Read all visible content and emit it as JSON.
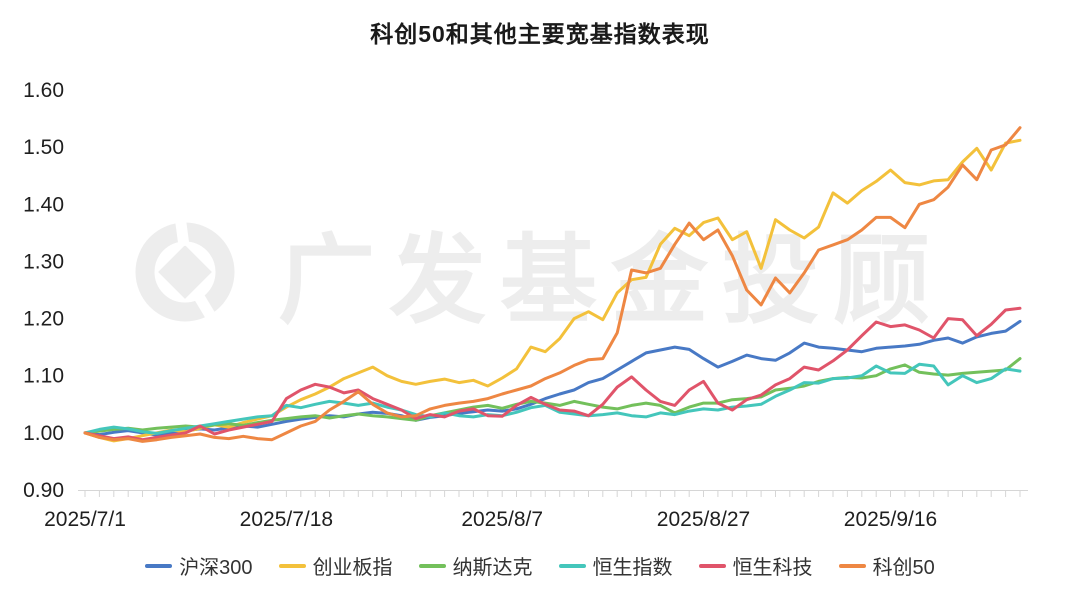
{
  "page": {
    "background": "#ffffff"
  },
  "watermark": {
    "text": "广发基金投顾",
    "logo": "gf-fund-ring-diamond-logo",
    "color": "#ededed"
  },
  "chart_data": {
    "type": "line",
    "title": "科创50和其他主要宽基指数表现",
    "grid": false,
    "legend_position": "bottom",
    "x_axis": {
      "n_points": 66,
      "minor_tick_per_point": true,
      "tick_labels": [
        {
          "label": "2025/7/1",
          "index": 0
        },
        {
          "label": "2025/7/18",
          "index": 14
        },
        {
          "label": "2025/8/7",
          "index": 29
        },
        {
          "label": "2025/8/27",
          "index": 43
        },
        {
          "label": "2025/9/16",
          "index": 56
        }
      ]
    },
    "y_axis": {
      "min": 0.9,
      "max": 1.6,
      "tick_labels": [
        "0.90",
        "1.00",
        "1.10",
        "1.20",
        "1.30",
        "1.40",
        "1.50",
        "1.60"
      ]
    },
    "series": [
      {
        "name": "沪深300",
        "color": "#4879C5",
        "values": [
          1.0,
          0.997,
          1.001,
          1.004,
          1.0,
          0.996,
          1.0,
          1.004,
          1.007,
          1.005,
          1.009,
          1.012,
          1.01,
          1.015,
          1.02,
          1.024,
          1.027,
          1.03,
          1.028,
          1.033,
          1.036,
          1.034,
          1.03,
          1.022,
          1.027,
          1.03,
          1.034,
          1.037,
          1.04,
          1.038,
          1.042,
          1.05,
          1.06,
          1.068,
          1.075,
          1.088,
          1.095,
          1.11,
          1.125,
          1.14,
          1.145,
          1.15,
          1.146,
          1.13,
          1.115,
          1.125,
          1.136,
          1.13,
          1.127,
          1.14,
          1.157,
          1.15,
          1.148,
          1.145,
          1.142,
          1.148,
          1.15,
          1.152,
          1.155,
          1.162,
          1.166,
          1.157,
          1.168,
          1.174,
          1.178,
          1.195
        ]
      },
      {
        "name": "创业板指",
        "color": "#F3C13B",
        "values": [
          1.0,
          0.992,
          0.986,
          0.99,
          0.995,
          1.0,
          1.005,
          1.002,
          1.008,
          1.014,
          1.01,
          1.018,
          1.024,
          1.03,
          1.045,
          1.058,
          1.068,
          1.08,
          1.095,
          1.105,
          1.115,
          1.1,
          1.09,
          1.085,
          1.09,
          1.094,
          1.088,
          1.092,
          1.082,
          1.096,
          1.112,
          1.15,
          1.142,
          1.165,
          1.2,
          1.212,
          1.198,
          1.245,
          1.268,
          1.272,
          1.33,
          1.358,
          1.345,
          1.368,
          1.376,
          1.338,
          1.352,
          1.288,
          1.373,
          1.355,
          1.341,
          1.36,
          1.42,
          1.402,
          1.424,
          1.44,
          1.46,
          1.438,
          1.434,
          1.441,
          1.443,
          1.474,
          1.498,
          1.46,
          1.507,
          1.512
        ]
      },
      {
        "name": "纳斯达克",
        "color": "#73C05B",
        "values": [
          1.0,
          1.003,
          1.006,
          1.008,
          1.005,
          1.008,
          1.01,
          1.012,
          1.01,
          1.014,
          1.016,
          1.013,
          1.018,
          1.022,
          1.025,
          1.028,
          1.03,
          1.026,
          1.03,
          1.033,
          1.03,
          1.028,
          1.025,
          1.022,
          1.03,
          1.035,
          1.04,
          1.045,
          1.048,
          1.043,
          1.05,
          1.055,
          1.052,
          1.048,
          1.055,
          1.05,
          1.045,
          1.042,
          1.048,
          1.052,
          1.048,
          1.035,
          1.045,
          1.052,
          1.052,
          1.058,
          1.06,
          1.063,
          1.075,
          1.078,
          1.082,
          1.09,
          1.095,
          1.097,
          1.096,
          1.1,
          1.112,
          1.119,
          1.106,
          1.103,
          1.101,
          1.104,
          1.106,
          1.108,
          1.11,
          1.13
        ]
      },
      {
        "name": "恒生指数",
        "color": "#44C6BB",
        "values": [
          1.0,
          1.006,
          1.01,
          1.007,
          1.002,
          0.999,
          1.004,
          1.008,
          1.012,
          1.016,
          1.02,
          1.024,
          1.028,
          1.03,
          1.048,
          1.044,
          1.05,
          1.055,
          1.052,
          1.048,
          1.052,
          1.045,
          1.04,
          1.032,
          1.028,
          1.035,
          1.03,
          1.028,
          1.032,
          1.03,
          1.036,
          1.044,
          1.048,
          1.036,
          1.033,
          1.03,
          1.032,
          1.035,
          1.03,
          1.028,
          1.035,
          1.032,
          1.038,
          1.042,
          1.04,
          1.045,
          1.047,
          1.05,
          1.064,
          1.075,
          1.088,
          1.087,
          1.095,
          1.096,
          1.1,
          1.117,
          1.105,
          1.104,
          1.12,
          1.117,
          1.084,
          1.1,
          1.088,
          1.095,
          1.112,
          1.108
        ]
      },
      {
        "name": "恒生科技",
        "color": "#E0546A",
        "values": [
          1.0,
          0.995,
          0.99,
          0.993,
          0.988,
          0.992,
          0.996,
          1.0,
          1.012,
          0.998,
          1.005,
          1.01,
          1.015,
          1.02,
          1.06,
          1.075,
          1.085,
          1.08,
          1.07,
          1.075,
          1.06,
          1.05,
          1.04,
          1.025,
          1.032,
          1.028,
          1.038,
          1.042,
          1.03,
          1.029,
          1.048,
          1.062,
          1.05,
          1.04,
          1.038,
          1.03,
          1.05,
          1.08,
          1.098,
          1.075,
          1.055,
          1.048,
          1.075,
          1.09,
          1.052,
          1.04,
          1.058,
          1.066,
          1.084,
          1.095,
          1.115,
          1.11,
          1.126,
          1.145,
          1.17,
          1.194,
          1.186,
          1.189,
          1.18,
          1.166,
          1.2,
          1.198,
          1.17,
          1.19,
          1.215,
          1.218
        ]
      },
      {
        "name": "科创50",
        "color": "#EE8743",
        "values": [
          1.0,
          0.992,
          0.988,
          0.99,
          0.985,
          0.988,
          0.992,
          0.995,
          0.998,
          0.992,
          0.99,
          0.994,
          0.99,
          0.988,
          1.0,
          1.012,
          1.02,
          1.04,
          1.055,
          1.072,
          1.05,
          1.035,
          1.028,
          1.03,
          1.042,
          1.048,
          1.052,
          1.055,
          1.06,
          1.068,
          1.075,
          1.082,
          1.095,
          1.105,
          1.118,
          1.128,
          1.13,
          1.175,
          1.285,
          1.28,
          1.288,
          1.33,
          1.367,
          1.338,
          1.355,
          1.31,
          1.25,
          1.224,
          1.271,
          1.245,
          1.28,
          1.32,
          1.329,
          1.338,
          1.355,
          1.377,
          1.377,
          1.359,
          1.4,
          1.408,
          1.43,
          1.469,
          1.443,
          1.495,
          1.504,
          1.534
        ]
      }
    ]
  }
}
